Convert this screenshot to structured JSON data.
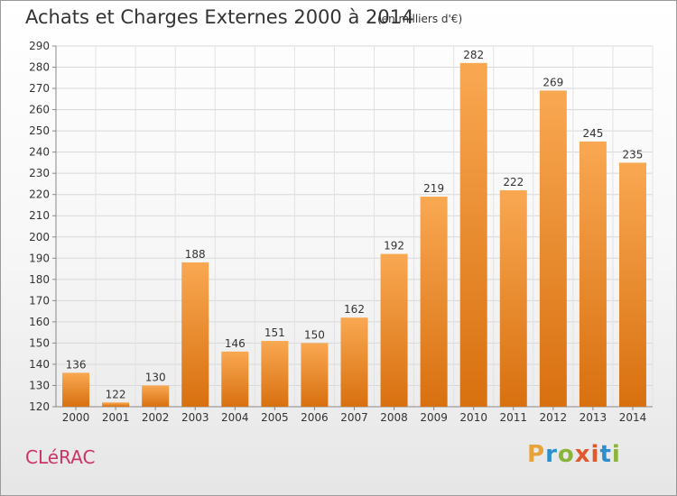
{
  "header": {
    "title": "Achats et Charges Externes 2000 à 2014",
    "unit": "(en milliers d'€)"
  },
  "footer": {
    "commune": "CLéRAC",
    "logo_letters": [
      "P",
      "r",
      "o",
      "x",
      "i",
      "t",
      "i"
    ]
  },
  "colors": {
    "bar_light": "#f9a852",
    "bar_dark": "#d8700f",
    "commune": "#cc3366",
    "logo": [
      "#e8a23a",
      "#2b8fcf",
      "#8ab43a",
      "#e2572c",
      "#e2572c",
      "#2b8fcf",
      "#8ab43a"
    ]
  },
  "chart_data": {
    "type": "bar",
    "categories": [
      "2000",
      "2001",
      "2002",
      "2003",
      "2004",
      "2005",
      "2006",
      "2007",
      "2008",
      "2009",
      "2010",
      "2011",
      "2012",
      "2013",
      "2014"
    ],
    "values": [
      136,
      122,
      130,
      188,
      146,
      151,
      150,
      162,
      192,
      219,
      282,
      222,
      269,
      245,
      235
    ],
    "ylim": [
      120,
      290
    ],
    "yticks": [
      120,
      130,
      140,
      150,
      160,
      170,
      180,
      190,
      200,
      210,
      220,
      230,
      240,
      250,
      260,
      270,
      280,
      290
    ],
    "grid": true,
    "data_labels": true
  }
}
